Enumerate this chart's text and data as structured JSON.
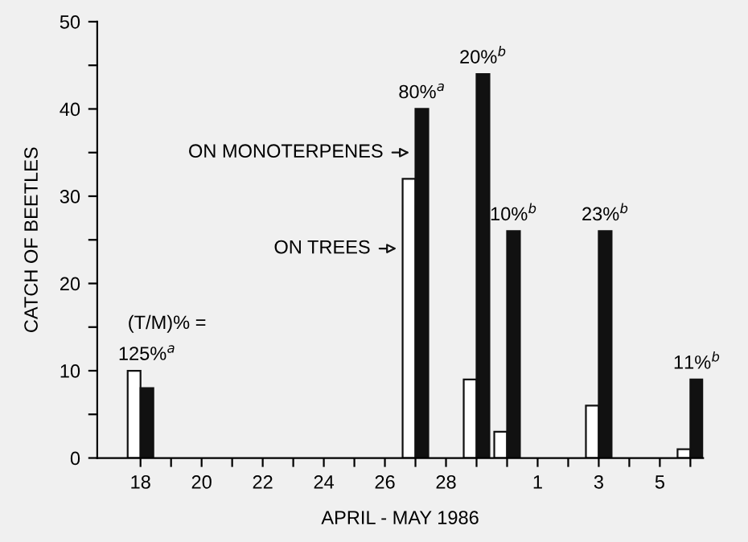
{
  "chart_data": {
    "type": "bar",
    "xlabel": "APRIL - MAY 1986",
    "ylabel": "CATCH OF BEETLES",
    "x": [
      "1986-04-18",
      "1986-04-27",
      "1986-04-29",
      "1986-04-30",
      "1986-05-03",
      "1986-05-06"
    ],
    "series": [
      {
        "name": "ON TREES",
        "color": "#ffffff",
        "values": [
          10,
          32,
          9,
          3,
          6,
          1
        ]
      },
      {
        "name": "ON MONOTERPENES",
        "color": "#111111",
        "values": [
          8,
          40,
          44,
          26,
          26,
          9
        ]
      }
    ],
    "xlim": [
      "1986-04-16T14:00",
      "1986-05-06T10:00"
    ],
    "ylim": [
      0,
      50
    ],
    "xticks": [
      {
        "value": "1986-04-18",
        "label": "18"
      },
      {
        "value": "1986-04-19",
        "label": null
      },
      {
        "value": "1986-04-20",
        "label": "20"
      },
      {
        "value": "1986-04-21",
        "label": null
      },
      {
        "value": "1986-04-22",
        "label": "22"
      },
      {
        "value": "1986-04-23",
        "label": null
      },
      {
        "value": "1986-04-24",
        "label": "24"
      },
      {
        "value": "1986-04-25",
        "label": null
      },
      {
        "value": "1986-04-26",
        "label": "26"
      },
      {
        "value": "1986-04-27",
        "label": null
      },
      {
        "value": "1986-04-28",
        "label": "28"
      },
      {
        "value": "1986-04-29",
        "label": null
      },
      {
        "value": "1986-04-30",
        "label": null
      },
      {
        "value": "1986-05-01",
        "label": "1"
      },
      {
        "value": "1986-05-02",
        "label": null
      },
      {
        "value": "1986-05-03",
        "label": "3"
      },
      {
        "value": "1986-05-04",
        "label": null
      },
      {
        "value": "1986-05-05",
        "label": "5"
      },
      {
        "value": "1986-05-06",
        "label": null
      }
    ],
    "yticks": [
      0,
      {
        "value": 5,
        "label": null
      },
      10,
      {
        "value": 15,
        "label": null
      },
      20,
      {
        "value": 25,
        "label": null
      },
      30,
      {
        "value": 35,
        "label": null
      },
      40,
      {
        "value": 45,
        "label": null
      },
      50
    ],
    "grid": false,
    "legend": "left",
    "annotations": [
      "(T/M)% =",
      {
        "text": "125%$^{a}$",
        "x": "1986-04-18",
        "y": 10
      },
      {
        "text": "80%$^{a}$",
        "x": "1986-04-27",
        "y": 40
      },
      {
        "text": "20%$^{b}$",
        "x": "1986-04-29",
        "y": 44
      },
      {
        "text": "10%$^{b}$",
        "x": "1986-04-30",
        "y": 26
      },
      {
        "text": "23%$^{b}$",
        "x": "1986-05-03",
        "y": 26
      },
      {
        "text": "11%$^{b}$",
        "x": "1986-05-06",
        "y": 9
      }
    ]
  }
}
